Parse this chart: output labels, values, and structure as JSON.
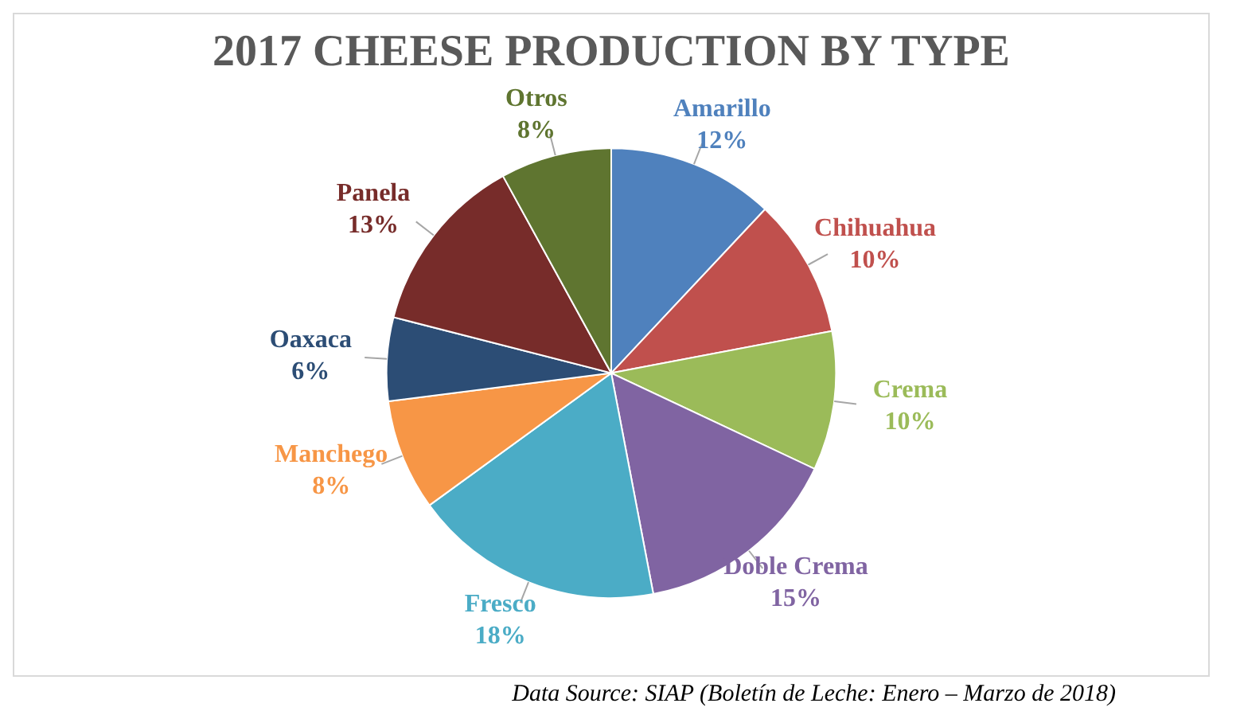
{
  "chart_data": {
    "type": "pie",
    "title": "2017 CHEESE PRODUCTION BY TYPE",
    "categories": [
      "Amarillo",
      "Chihuahua",
      "Crema",
      "Doble Crema",
      "Fresco",
      "Manchego",
      "Oaxaca",
      "Panela",
      "Otros"
    ],
    "values": [
      12,
      10,
      10,
      15,
      18,
      8,
      6,
      13,
      8
    ],
    "colors": [
      "#4f81bd",
      "#c0504d",
      "#9bbb59",
      "#8064a2",
      "#4bacc6",
      "#f79646",
      "#2c4d75",
      "#772c2a",
      "#5f7530"
    ],
    "value_labels": [
      "12%",
      "10%",
      "10%",
      "15%",
      "18%",
      "8%",
      "6%",
      "13%",
      "8%"
    ],
    "legend": false,
    "annotations": [
      "Data Source: SIAP (Boletín de Leche: Enero – Marzo de 2018)"
    ]
  }
}
